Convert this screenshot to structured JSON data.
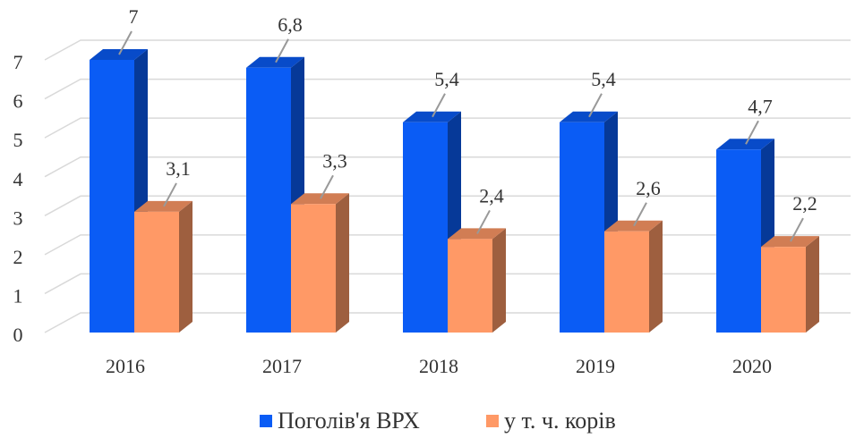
{
  "chart_data": {
    "type": "bar3d",
    "categories": [
      "2016",
      "2017",
      "2018",
      "2019",
      "2020"
    ],
    "series": [
      {
        "name": "Поголів'я ВРХ",
        "color": "#0a5cf5",
        "values": [
          7,
          6.8,
          5.4,
          5.4,
          4.7
        ],
        "value_labels": [
          "7",
          "6,8",
          "5,4",
          "5,4",
          "4,7"
        ]
      },
      {
        "name": "у  т. ч. корів",
        "color": "#ff9966",
        "values": [
          3.1,
          3.3,
          2.4,
          2.6,
          2.2
        ],
        "value_labels": [
          "3,1",
          "3,3",
          "2,4",
          "2,6",
          "2,2"
        ]
      }
    ],
    "ylim": [
      0,
      7
    ],
    "yticks": [
      0,
      1,
      2,
      3,
      4,
      5,
      6,
      7
    ],
    "grid": true,
    "legend": "bottom"
  }
}
